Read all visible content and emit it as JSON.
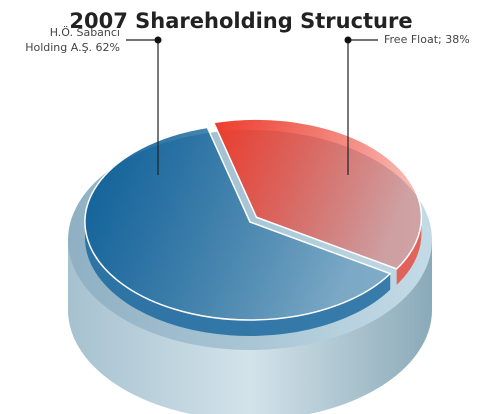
{
  "chart_data": {
    "type": "pie",
    "title": "2007 Shareholding Structure",
    "values": [
      62,
      38
    ],
    "value_labels": [
      [
        "H.Ö. Sabancı",
        "Holding A.Ş. 62%"
      ],
      [
        "Free Float; 38%"
      ]
    ],
    "colors": [
      "#0b5e98",
      "#ec3b2c"
    ]
  }
}
